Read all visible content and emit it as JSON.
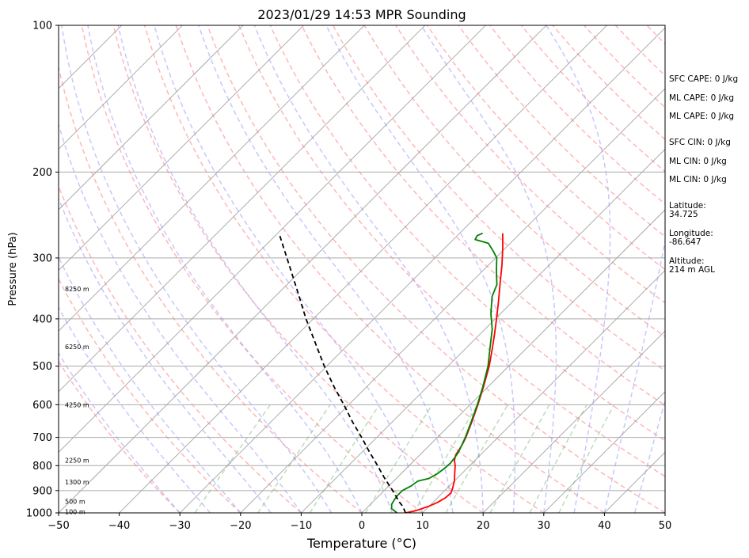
{
  "chart_data": {
    "type": "line",
    "title": "2023/01/29 14:53 MPR Sounding",
    "xlabel": "Temperature (°C)",
    "ylabel": "Pressure (hPa)",
    "xlim": [
      -50,
      50
    ],
    "ylim": [
      1000,
      100
    ],
    "y_scale": "log",
    "x_ticks": [
      "−50",
      "−40",
      "−30",
      "−20",
      "−10",
      "0",
      "10",
      "20",
      "30",
      "40",
      "50"
    ],
    "x_tick_values": [
      -50,
      -40,
      -30,
      -20,
      -10,
      0,
      10,
      20,
      30,
      40,
      50
    ],
    "y_ticks": [
      "100",
      "200",
      "300",
      "400",
      "500",
      "600",
      "700",
      "800",
      "900",
      "1000"
    ],
    "y_tick_values": [
      100,
      200,
      300,
      400,
      500,
      600,
      700,
      800,
      900,
      1000
    ],
    "grid": "horizontal at pressure ticks",
    "skew": "skew-T log-p diagram",
    "height_labels": [
      {
        "text": "8250 m",
        "pressure": 347
      },
      {
        "text": "6250 m",
        "pressure": 456
      },
      {
        "text": "4250 m",
        "pressure": 600
      },
      {
        "text": "2250 m",
        "pressure": 780
      },
      {
        "text": "1300 m",
        "pressure": 864
      },
      {
        "text": "500 m",
        "pressure": 948
      },
      {
        "text": "100 m",
        "pressure": 994
      }
    ],
    "series": [
      {
        "name": "",
        "color": "#ff0000",
        "points": [
          [
            1000,
            7.2
          ],
          [
            990,
            8.5
          ],
          [
            970,
            9.9
          ],
          [
            950,
            10.8
          ],
          [
            930,
            11.3
          ],
          [
            910,
            11.4
          ],
          [
            890,
            10.9
          ],
          [
            860,
            10.0
          ],
          [
            830,
            8.8
          ],
          [
            800,
            7.6
          ],
          [
            780,
            6.6
          ],
          [
            760,
            5.9
          ],
          [
            740,
            5.6
          ],
          [
            720,
            5.2
          ],
          [
            700,
            4.7
          ],
          [
            650,
            3.1
          ],
          [
            600,
            1.3
          ],
          [
            550,
            -0.8
          ],
          [
            500,
            -3.2
          ],
          [
            460,
            -5.6
          ],
          [
            430,
            -7.6
          ],
          [
            400,
            -9.8
          ],
          [
            370,
            -12.2
          ],
          [
            340,
            -14.9
          ],
          [
            310,
            -17.8
          ],
          [
            285,
            -20.6
          ],
          [
            267,
            -22.9
          ]
        ]
      },
      {
        "name": "",
        "color": "#008000",
        "points": [
          [
            1000,
            5.8
          ],
          [
            980,
            4.2
          ],
          [
            960,
            3.5
          ],
          [
            940,
            3.2
          ],
          [
            920,
            3.0
          ],
          [
            900,
            3.0
          ],
          [
            880,
            3.7
          ],
          [
            860,
            4.0
          ],
          [
            850,
            5.4
          ],
          [
            830,
            6.0
          ],
          [
            810,
            6.3
          ],
          [
            790,
            6.4
          ],
          [
            770,
            6.2
          ],
          [
            750,
            5.9
          ],
          [
            730,
            5.4
          ],
          [
            700,
            4.6
          ],
          [
            650,
            3.0
          ],
          [
            600,
            1.2
          ],
          [
            550,
            -0.9
          ],
          [
            500,
            -3.4
          ],
          [
            460,
            -6.0
          ],
          [
            420,
            -8.8
          ],
          [
            390,
            -11.6
          ],
          [
            360,
            -14.2
          ],
          [
            340,
            -15.4
          ],
          [
            320,
            -17.6
          ],
          [
            300,
            -19.8
          ],
          [
            290,
            -21.6
          ],
          [
            280,
            -23.6
          ],
          [
            275,
            -26.4
          ],
          [
            270,
            -26.7
          ],
          [
            267,
            -26.2
          ]
        ]
      },
      {
        "name": "",
        "color": "#000000",
        "dashed": true,
        "points": [
          [
            1000,
            7.2
          ],
          [
            970,
            5.7
          ],
          [
            950,
            4.4
          ],
          [
            900,
            1.4
          ],
          [
            850,
            -1.9
          ],
          [
            800,
            -5.2
          ],
          [
            750,
            -8.8
          ],
          [
            700,
            -12.5
          ],
          [
            650,
            -16.6
          ],
          [
            600,
            -20.8
          ],
          [
            550,
            -25.5
          ],
          [
            500,
            -30.4
          ],
          [
            450,
            -35.5
          ],
          [
            400,
            -41.2
          ],
          [
            350,
            -47.3
          ],
          [
            300,
            -54.4
          ],
          [
            268,
            -59.6
          ]
        ]
      }
    ]
  },
  "info_panel": {
    "sfc_cape": "SFC CAPE: 0 J/kg",
    "ml_cape_1": "ML CAPE: 0 J/kg",
    "ml_cape_2": "ML CAPE: 0 J/kg",
    "sfc_cin": "SFC CIN: 0 J/kg",
    "ml_cin_1": "ML CIN: 0 J/kg",
    "ml_cin_2": "ML CIN: 0 J/kg",
    "latitude": "Latitude:\n34.725",
    "longitude": "Longitude:\n-86.647",
    "altitude": "Altitude:\n214 m AGL"
  }
}
